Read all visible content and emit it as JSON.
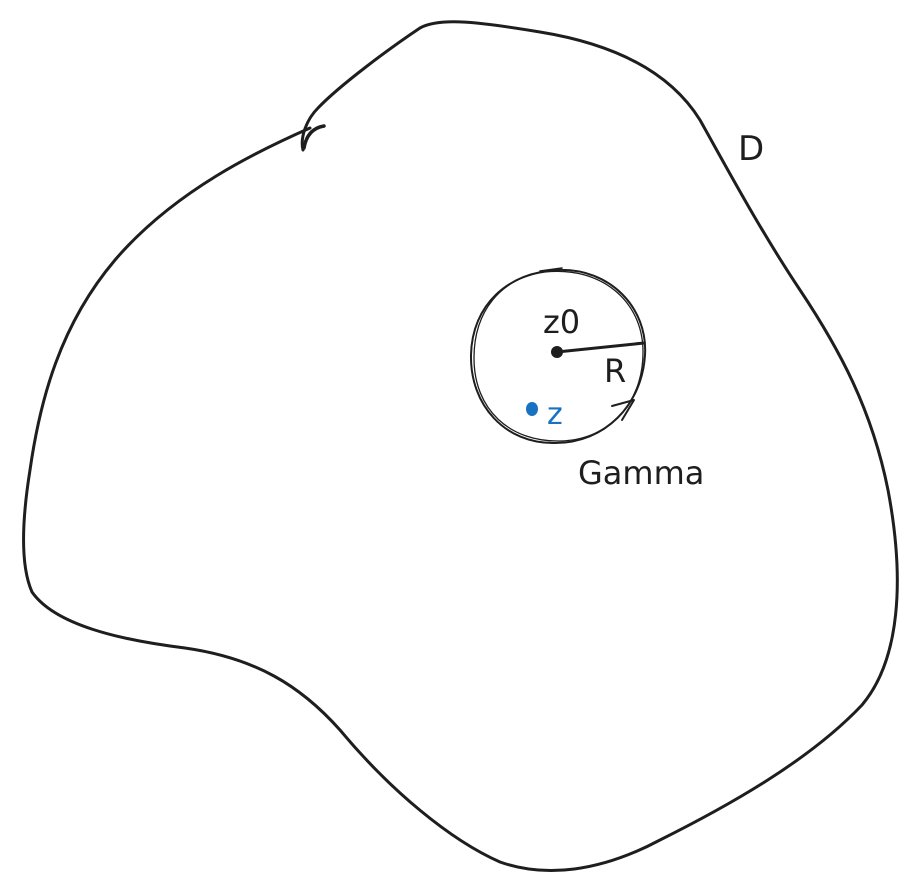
{
  "diagram": {
    "region_label": "D",
    "center_label": "z0",
    "radius_label": "R",
    "point_label": "z",
    "contour_label": "Gamma",
    "colors": {
      "ink": "#1e1e1e",
      "accent": "#1971c2",
      "background": "#ffffff"
    }
  }
}
